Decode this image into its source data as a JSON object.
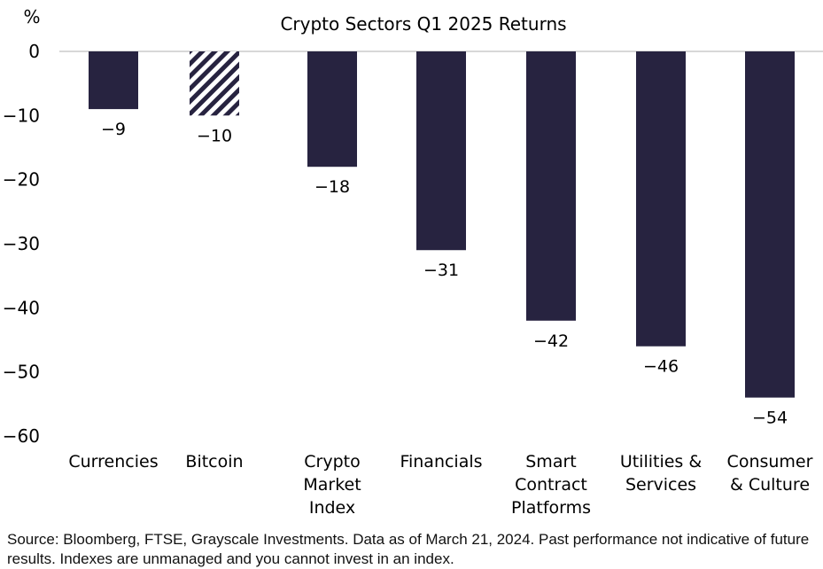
{
  "chart_data": {
    "type": "bar",
    "title": "Crypto Sectors Q1 2025 Returns",
    "ylabel": "%",
    "ylim": [
      -60,
      0
    ],
    "yticks": [
      0,
      -10,
      -20,
      -30,
      -40,
      -50,
      -60
    ],
    "grid": false,
    "categories": [
      [
        "Currencies"
      ],
      [
        "Bitcoin"
      ],
      [
        "Crypto",
        "Market",
        "Index"
      ],
      [
        "Financials"
      ],
      [
        "Smart",
        "Contract",
        "Platforms"
      ],
      [
        "Utilities &",
        "Services"
      ],
      [
        "Consumer",
        "& Culture"
      ]
    ],
    "values": [
      -9,
      -10,
      -18,
      -31,
      -42,
      -46,
      -54
    ],
    "data_labels": [
      "-9",
      "-10",
      "-18",
      "-31",
      "-42",
      "-46",
      "-54"
    ],
    "bar_style": [
      "solid",
      "hatched",
      "solid",
      "solid",
      "solid",
      "solid",
      "solid"
    ],
    "colors": {
      "bar": "#272340",
      "axis": "#cccccc"
    }
  },
  "footnote": "Source: Bloomberg, FTSE, Grayscale Investments. Data as of March 21, 2024. Past performance not indicative of future results. Indexes are unmanaged and you cannot invest in an index."
}
